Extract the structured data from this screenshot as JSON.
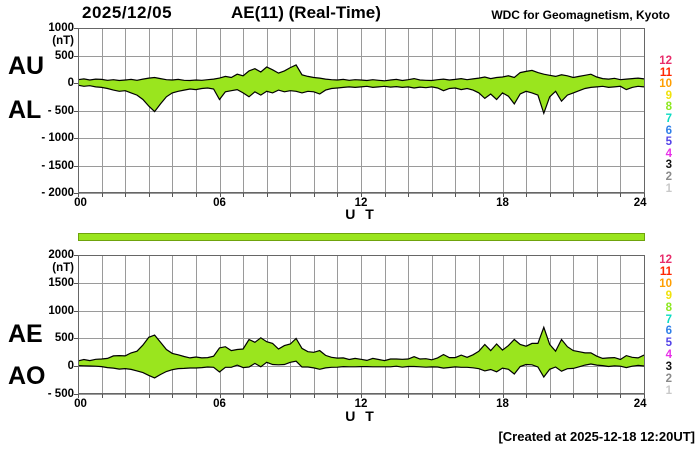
{
  "header": {
    "date": "2025/12/05",
    "title": "AE(11) (Real-Time)",
    "org": "WDC for Geomagnetism, Kyoto"
  },
  "footer": {
    "created": "[Created at 2025-12-18 12:20UT]"
  },
  "colors": {
    "fill": "#9AE51E",
    "outline": "#000000",
    "grid": "#9a9a9a",
    "frame": "#666666",
    "tick": "#555555",
    "bar_fill": "#9AE51E",
    "bar_border": "#6fa30c"
  },
  "station_legend": {
    "items": [
      {
        "label": "12",
        "color": "#E82D6B"
      },
      {
        "label": "11",
        "color": "#FF2600"
      },
      {
        "label": "10",
        "color": "#FF9E00"
      },
      {
        "label": "9",
        "color": "#F0E20C"
      },
      {
        "label": "8",
        "color": "#8DE821"
      },
      {
        "label": "7",
        "color": "#0ADBC2"
      },
      {
        "label": "6",
        "color": "#2E7FE8"
      },
      {
        "label": "5",
        "color": "#5444E8"
      },
      {
        "label": "4",
        "color": "#E831E8"
      },
      {
        "label": "3",
        "color": "#141414"
      },
      {
        "label": "2",
        "color": "#8A8A8A"
      },
      {
        "label": "1",
        "color": "#C9C9C9"
      }
    ]
  },
  "availability_bar": {
    "meaning": "data coverage 00-24 UT",
    "color": "#9AE51E"
  },
  "chart_data": [
    {
      "type": "area",
      "panel": "top",
      "unit": "(nT)",
      "xlabel": "U T",
      "xlim": [
        0,
        24
      ],
      "xticks": [
        {
          "label": "00",
          "h": 0
        },
        {
          "label": "06",
          "h": 6
        },
        {
          "label": "12",
          "h": 12
        },
        {
          "label": "18",
          "h": 18
        },
        {
          "label": "24",
          "h": 24
        }
      ],
      "ylim": [
        -2000,
        1000
      ],
      "yticks": [
        {
          "label": "1000",
          "v": 1000
        },
        {
          "label": "500",
          "v": 500
        },
        {
          "label": "0",
          "v": 0
        },
        {
          "label": "- 500",
          "v": -500
        },
        {
          "label": "- 1000",
          "v": -1000
        },
        {
          "label": "- 1500",
          "v": -1500
        },
        {
          "label": "- 2000",
          "v": -2000
        }
      ],
      "x_start": 0,
      "x_step": 0.25,
      "series": [
        {
          "name": "AU",
          "values": [
            60,
            75,
            55,
            70,
            65,
            50,
            60,
            45,
            55,
            65,
            50,
            70,
            90,
            100,
            80,
            60,
            55,
            65,
            50,
            45,
            55,
            50,
            60,
            70,
            90,
            120,
            100,
            160,
            130,
            220,
            260,
            200,
            290,
            240,
            180,
            220,
            280,
            330,
            150,
            120,
            100,
            90,
            70,
            60,
            55,
            65,
            50,
            60,
            55,
            45,
            60,
            50,
            40,
            55,
            65,
            45,
            60,
            80,
            55,
            50,
            45,
            60,
            70,
            55,
            65,
            80,
            60,
            75,
            90,
            110,
            80,
            100,
            110,
            130,
            100,
            190,
            210,
            230,
            190,
            160,
            140,
            120,
            150,
            130,
            100,
            120,
            140,
            160,
            110,
            80,
            70,
            85,
            60,
            70,
            80,
            90,
            75
          ]
        },
        {
          "name": "AL",
          "values": [
            -40,
            -60,
            -50,
            -70,
            -80,
            -100,
            -130,
            -150,
            -140,
            -180,
            -220,
            -300,
            -420,
            -520,
            -380,
            -250,
            -180,
            -150,
            -130,
            -110,
            -120,
            -100,
            -90,
            -110,
            -300,
            -160,
            -140,
            -120,
            -180,
            -250,
            -160,
            -220,
            -150,
            -180,
            -130,
            -160,
            -140,
            -150,
            -180,
            -150,
            -160,
            -200,
            -130,
            -100,
            -90,
            -80,
            -70,
            -80,
            -70,
            -60,
            -80,
            -70,
            -60,
            -75,
            -65,
            -80,
            -70,
            -90,
            -75,
            -85,
            -70,
            -90,
            -140,
            -100,
            -90,
            -120,
            -100,
            -130,
            -180,
            -280,
            -200,
            -300,
            -180,
            -240,
            -380,
            -200,
            -150,
            -180,
            -220,
            -550,
            -250,
            -150,
            -330,
            -220,
            -180,
            -140,
            -100,
            -80,
            -70,
            -60,
            -80,
            -70,
            -60,
            -120,
            -80,
            -60,
            -70
          ]
        }
      ]
    },
    {
      "type": "area",
      "panel": "bottom",
      "unit": "(nT)",
      "xlabel": "U T",
      "xlim": [
        0,
        24
      ],
      "xticks": [
        {
          "label": "00",
          "h": 0
        },
        {
          "label": "06",
          "h": 6
        },
        {
          "label": "12",
          "h": 12
        },
        {
          "label": "18",
          "h": 18
        },
        {
          "label": "24",
          "h": 24
        }
      ],
      "ylim": [
        -500,
        2000
      ],
      "yticks": [
        {
          "label": "2000",
          "v": 2000
        },
        {
          "label": "1500",
          "v": 1500
        },
        {
          "label": "1000",
          "v": 1000
        },
        {
          "label": "500",
          "v": 500
        },
        {
          "label": "0",
          "v": 0
        },
        {
          "label": "- 500",
          "v": -500
        }
      ],
      "x_start": 0,
      "x_step": 0.25,
      "series": [
        {
          "name": "AE",
          "values": [
            95,
            120,
            100,
            125,
            130,
            140,
            185,
            190,
            185,
            240,
            270,
            380,
            520,
            560,
            430,
            300,
            230,
            205,
            175,
            150,
            165,
            150,
            155,
            180,
            330,
            350,
            280,
            300,
            310,
            480,
            430,
            510,
            440,
            410,
            310,
            370,
            400,
            500,
            320,
            260,
            250,
            280,
            195,
            160,
            145,
            150,
            120,
            140,
            125,
            105,
            140,
            120,
            100,
            130,
            130,
            125,
            130,
            170,
            130,
            135,
            115,
            150,
            210,
            155,
            155,
            200,
            160,
            205,
            270,
            390,
            280,
            400,
            290,
            370,
            480,
            390,
            360,
            410,
            410,
            700,
            390,
            270,
            480,
            350,
            280,
            260,
            240,
            240,
            180,
            140,
            150,
            155,
            120,
            190,
            160,
            150,
            200
          ]
        },
        {
          "name": "AO",
          "values": [
            10,
            8,
            3,
            0,
            -8,
            -25,
            -35,
            -53,
            -43,
            -58,
            -85,
            -115,
            -165,
            -210,
            -150,
            -95,
            -63,
            -43,
            -40,
            -33,
            -33,
            -25,
            -15,
            -20,
            -105,
            -20,
            -20,
            20,
            -25,
            -15,
            50,
            -10,
            70,
            30,
            25,
            30,
            70,
            90,
            -15,
            -15,
            -30,
            -55,
            -30,
            -20,
            -18,
            -8,
            -10,
            -10,
            -8,
            -8,
            -10,
            -10,
            -10,
            -10,
            0,
            -18,
            -5,
            -5,
            -10,
            -18,
            -13,
            -15,
            -35,
            -23,
            -13,
            -20,
            -20,
            -28,
            -45,
            -85,
            -60,
            -100,
            -35,
            -55,
            -140,
            -5,
            30,
            25,
            -15,
            -195,
            -55,
            -15,
            -90,
            -45,
            -40,
            -10,
            20,
            40,
            20,
            10,
            -5,
            8,
            0,
            -25,
            0,
            15,
            3
          ]
        }
      ]
    }
  ]
}
